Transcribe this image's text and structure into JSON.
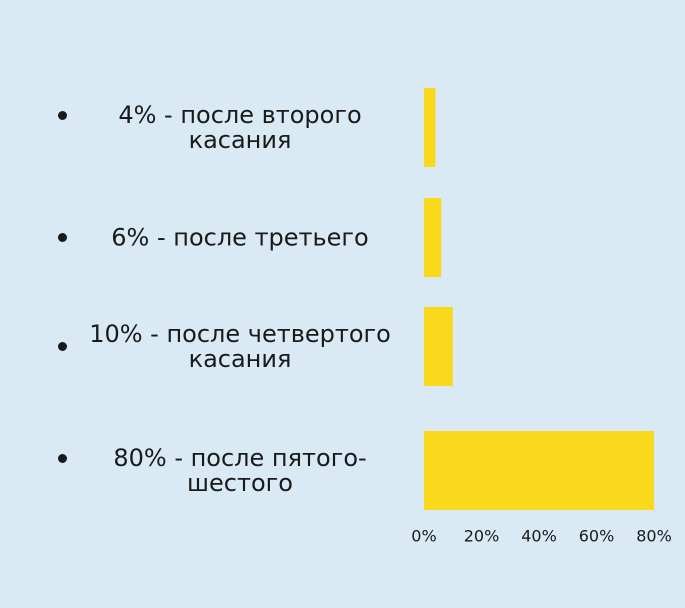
{
  "chart_data": {
    "type": "hbar",
    "categories": [
      "4% - после второго касания",
      "6% - после третьего",
      "10% - после четвертого касания",
      "80% - после пятого-шестого"
    ],
    "values": [
      4,
      6,
      10,
      80
    ],
    "color": "#fad91c",
    "xlim": [
      0,
      80
    ],
    "xticks": [
      {
        "value": 0,
        "label": "0%"
      },
      {
        "value": 20,
        "label": "20%"
      },
      {
        "value": 40,
        "label": "40%"
      },
      {
        "value": 60,
        "label": "60%"
      },
      {
        "value": 80,
        "label": "80%"
      }
    ]
  }
}
